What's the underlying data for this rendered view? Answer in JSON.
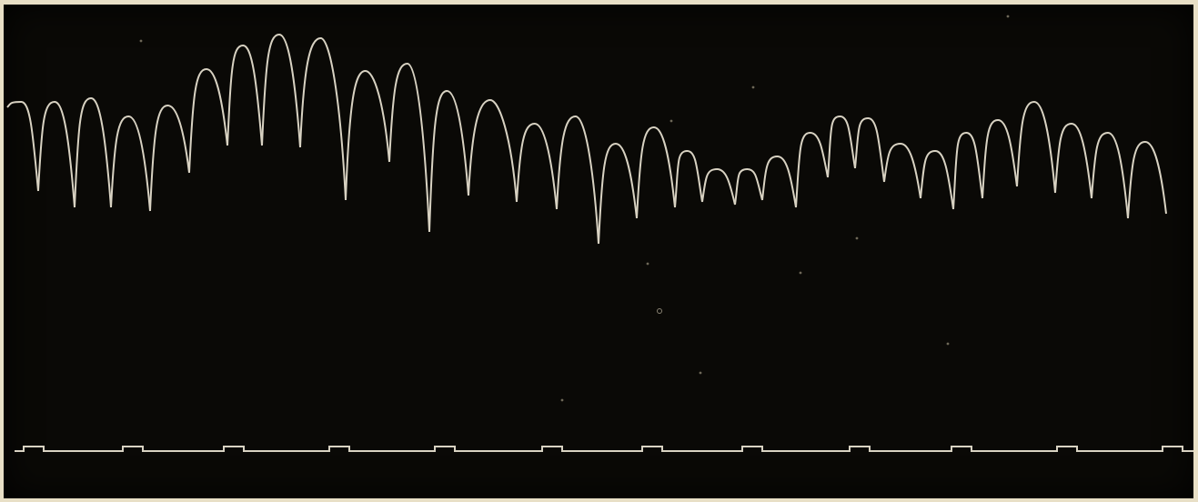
{
  "figure": {
    "kind": "kymograph tracing",
    "colors": {
      "paper": "#e8dfc6",
      "plate": "#0a0906",
      "trace": "#d8d2c2"
    },
    "upper_trace": {
      "description_type": "pulsation tracing",
      "beat_count": 32
    },
    "time_marker": {
      "description_type": "time signal",
      "mark_count": 12
    }
  }
}
